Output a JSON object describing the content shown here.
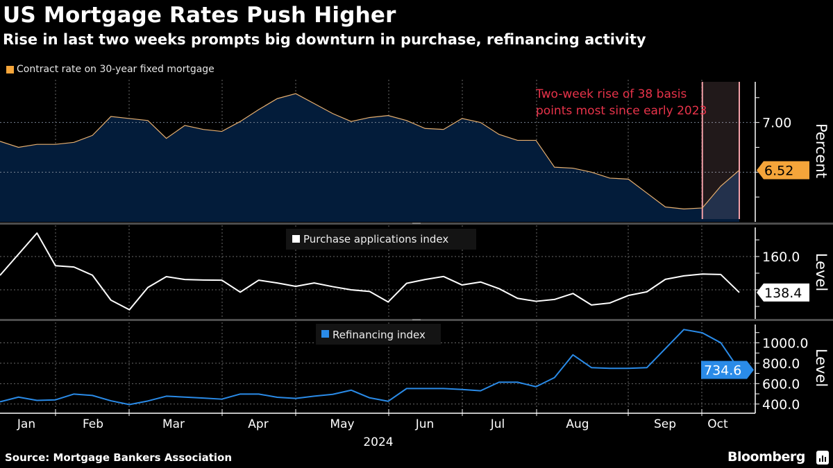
{
  "header": {
    "title": "US Mortgage Rates Push Higher",
    "subtitle": "Rise in last two weeks prompts big downturn in purchase, refinancing activity"
  },
  "footer": {
    "source": "Source: Mortgage Bankers Association",
    "brand": "Bloomberg"
  },
  "colors": {
    "background": "#000000",
    "rate_line": "#e8b070",
    "rate_area": "#031c3a",
    "rate_badge": "#f5a53a",
    "purchase_line": "#ffffff",
    "refi_line": "#2a8be8",
    "annotation": "#e8334a",
    "highlight_border": "#f4a0a8"
  },
  "x_axis": {
    "month_labels": [
      "Jan",
      "Feb",
      "Mar",
      "Apr",
      "May",
      "Jun",
      "Jul",
      "Aug",
      "Sep",
      "Oct"
    ],
    "year_label": "2024"
  },
  "chart_data": [
    {
      "type": "area",
      "legend": "Contract rate on 30-year fixed mortgage",
      "ylabel": "Percent",
      "ylim": [
        6.0,
        7.43
      ],
      "yticks": [
        6.25,
        6.5,
        6.75,
        7.0,
        7.25
      ],
      "ytick_labels": [
        "7.00"
      ],
      "last_value_label": "6.52",
      "grid": true,
      "annotation": {
        "lines": [
          "Two-week rise of 38 basis",
          "points most since early 2023"
        ],
        "highlight_range": [
          "2024-09-27",
          "2024-10-11"
        ]
      },
      "x": [
        "2024-01-05",
        "2024-01-12",
        "2024-01-19",
        "2024-01-26",
        "2024-02-02",
        "2024-02-09",
        "2024-02-16",
        "2024-02-23",
        "2024-03-01",
        "2024-03-08",
        "2024-03-15",
        "2024-03-22",
        "2024-03-29",
        "2024-04-05",
        "2024-04-12",
        "2024-04-19",
        "2024-04-26",
        "2024-05-03",
        "2024-05-10",
        "2024-05-17",
        "2024-05-24",
        "2024-05-31",
        "2024-06-07",
        "2024-06-14",
        "2024-06-21",
        "2024-06-28",
        "2024-07-05",
        "2024-07-12",
        "2024-07-19",
        "2024-07-26",
        "2024-08-02",
        "2024-08-09",
        "2024-08-16",
        "2024-08-23",
        "2024-08-30",
        "2024-09-06",
        "2024-09-13",
        "2024-09-20",
        "2024-09-27",
        "2024-10-04",
        "2024-10-11"
      ],
      "values": [
        6.81,
        6.75,
        6.78,
        6.78,
        6.8,
        6.87,
        7.06,
        7.04,
        7.02,
        6.84,
        6.97,
        6.93,
        6.91,
        7.01,
        7.13,
        7.24,
        7.29,
        7.19,
        7.09,
        7.01,
        7.05,
        7.07,
        7.02,
        6.94,
        6.93,
        7.04,
        7.0,
        6.88,
        6.82,
        6.82,
        6.55,
        6.54,
        6.5,
        6.44,
        6.43,
        6.29,
        6.15,
        6.13,
        6.14,
        6.36,
        6.52
      ]
    },
    {
      "type": "line",
      "legend": "Purchase applications index",
      "ylabel": "Level",
      "ylim": [
        122.5,
        178.75
      ],
      "yticks": [
        130,
        140,
        150,
        160,
        170
      ],
      "ytick_labels": [
        "160.0"
      ],
      "last_value_label": "138.4",
      "grid": true,
      "values": [
        148.7,
        161.4,
        174.1,
        154.5,
        153.7,
        148.8,
        133.8,
        128.0,
        141.4,
        147.9,
        146.2,
        145.9,
        145.8,
        138.6,
        145.8,
        144.1,
        142.1,
        144.1,
        141.9,
        140.0,
        139.0,
        132.7,
        143.9,
        146.2,
        148.0,
        142.9,
        144.7,
        140.7,
        134.9,
        133.1,
        134.2,
        137.8,
        130.9,
        132.1,
        136.6,
        138.8,
        146.3,
        148.4,
        149.5,
        149.2,
        138.4
      ]
    },
    {
      "type": "line",
      "legend": "Refinancing index",
      "ylabel": "Level",
      "ylim": [
        310,
        1200
      ],
      "yticks": [
        400,
        500,
        600,
        700,
        800,
        900,
        1000,
        1100
      ],
      "ytick_labels": [
        "1000.0",
        "800.0",
        "600.0",
        "400.0"
      ],
      "last_value_label": "734.6",
      "grid": true,
      "values": [
        422,
        468,
        436,
        441,
        498,
        484,
        432,
        395,
        430,
        477,
        468,
        459,
        448,
        498,
        498,
        466,
        455,
        477,
        495,
        536,
        461,
        427,
        552,
        552,
        552,
        543,
        530,
        614,
        614,
        570,
        659,
        882,
        757,
        750,
        750,
        757,
        943,
        1130,
        1098,
        1000,
        734.6
      ]
    }
  ]
}
